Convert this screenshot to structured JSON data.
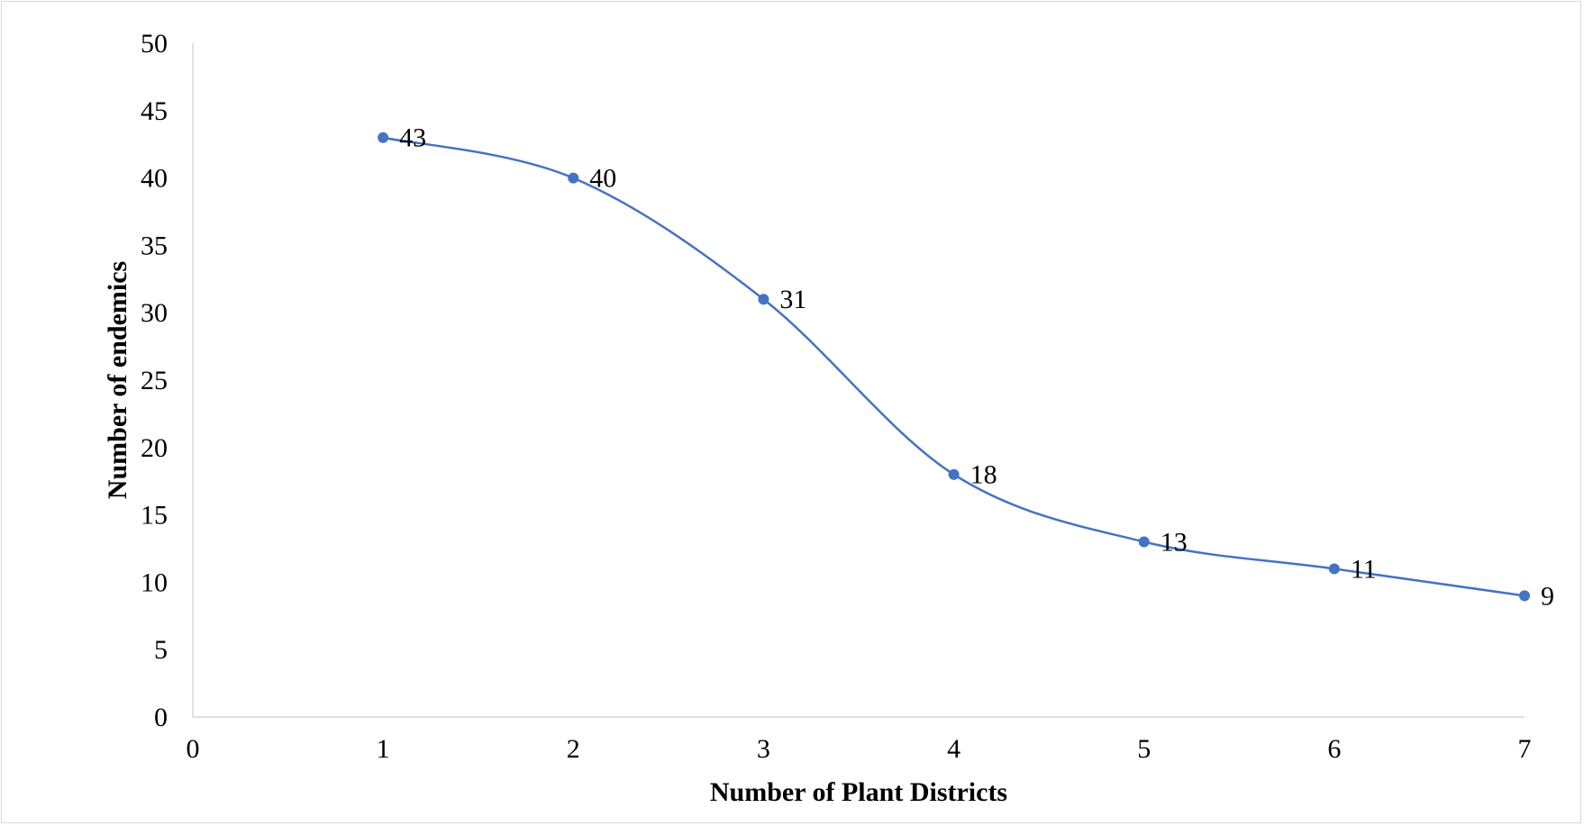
{
  "chart_data": {
    "type": "scatter",
    "title": "",
    "xlabel": "Number of Plant Districts",
    "ylabel": "Number of endemics",
    "xlim": [
      0,
      7
    ],
    "ylim": [
      0,
      50
    ],
    "xticks": [
      0,
      1,
      2,
      3,
      4,
      5,
      6,
      7
    ],
    "yticks": [
      0,
      5,
      10,
      15,
      20,
      25,
      30,
      35,
      40,
      45,
      50
    ],
    "smooth_line": true,
    "grid": false,
    "legend": "none",
    "series": [
      {
        "color": "#4472c4",
        "x": [
          1,
          2,
          3,
          4,
          5,
          6,
          7
        ],
        "y": [
          43,
          40,
          31,
          18,
          13,
          11,
          9
        ],
        "data_labels": [
          "43",
          "40",
          "31",
          "18",
          "13",
          "11",
          "9"
        ]
      }
    ]
  }
}
